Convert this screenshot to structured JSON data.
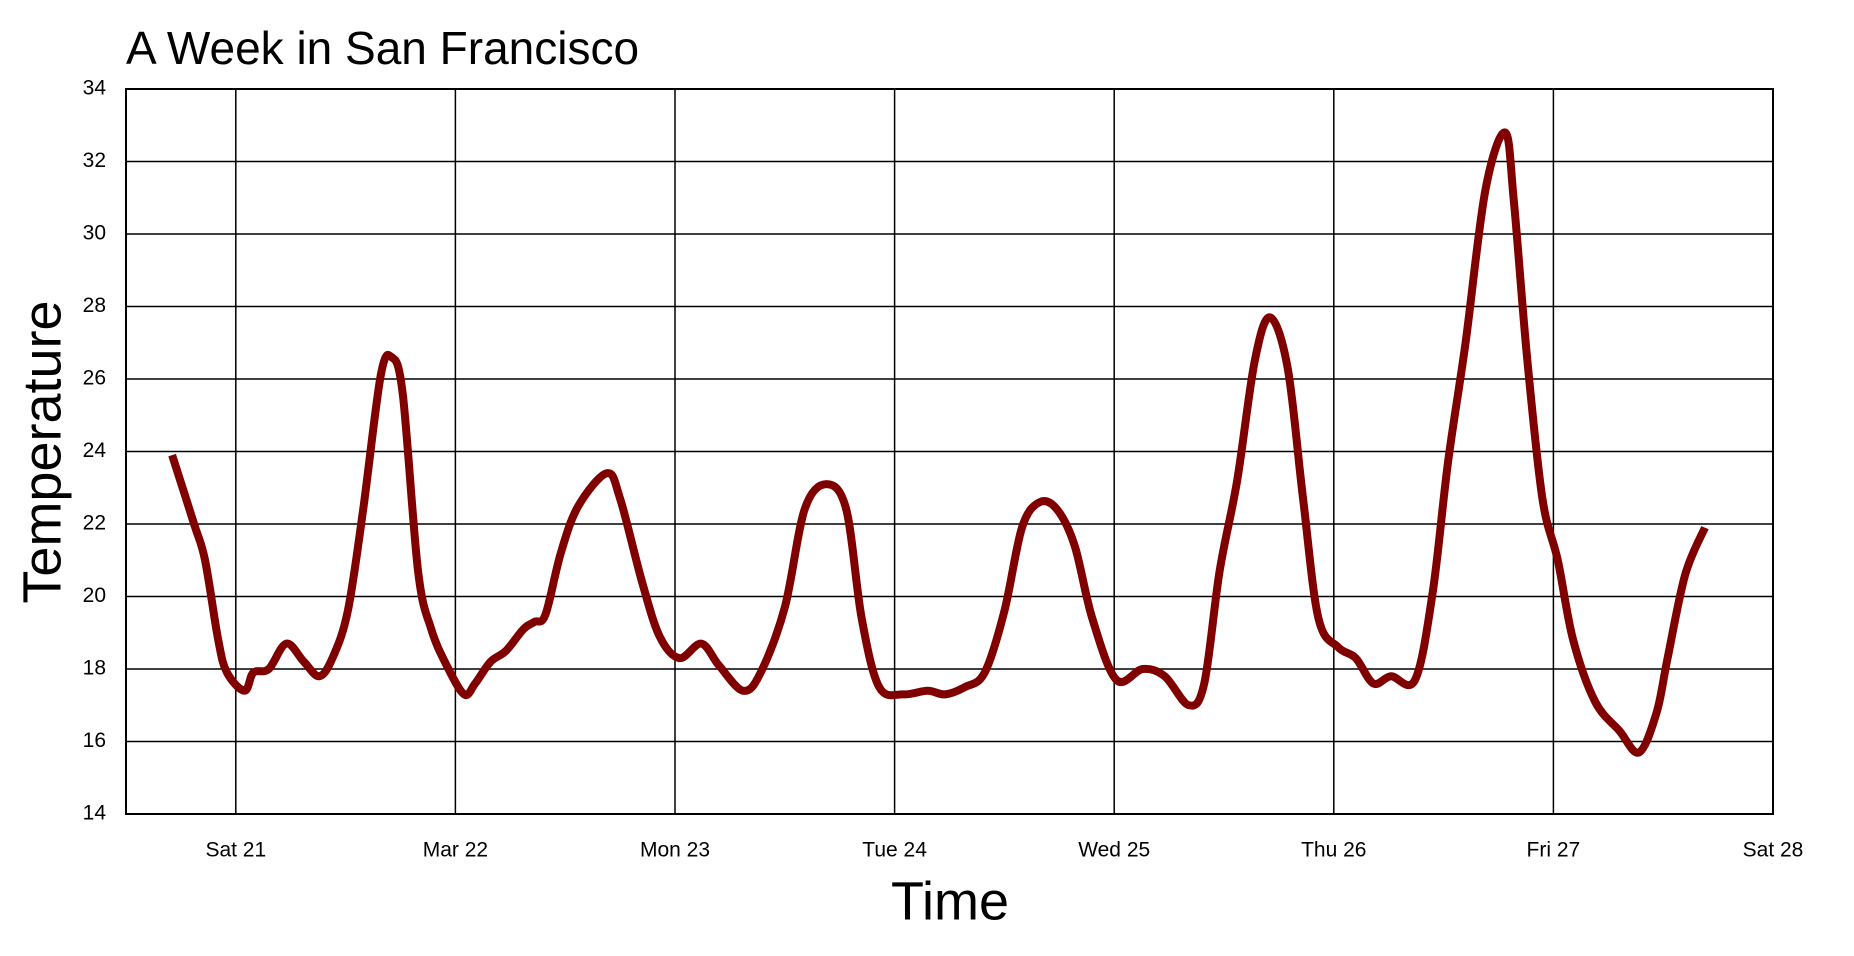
{
  "chart_data": {
    "type": "line",
    "title": "A Week in San Francisco",
    "xlabel": "Time",
    "ylabel": "Temperature",
    "x": [
      20.71,
      20.81,
      20.86,
      20.92,
      20.96,
      21.04,
      21.08,
      21.15,
      21.23,
      21.31,
      21.38,
      21.44,
      21.51,
      21.58,
      21.66,
      21.71,
      21.76,
      21.83,
      21.89,
      21.96,
      22.04,
      22.09,
      22.16,
      22.23,
      22.31,
      22.36,
      22.41,
      22.48,
      22.56,
      22.69,
      22.75,
      22.85,
      22.93,
      23.02,
      23.12,
      23.2,
      23.31,
      23.39,
      23.5,
      23.59,
      23.69,
      23.78,
      23.85,
      23.93,
      24.04,
      24.15,
      24.23,
      24.32,
      24.41,
      24.5,
      24.58,
      24.66,
      24.74,
      24.82,
      24.9,
      25.01,
      25.13,
      25.23,
      25.34,
      25.41,
      25.48,
      25.56,
      25.64,
      25.71,
      25.79,
      25.86,
      25.93,
      26.02,
      26.1,
      26.18,
      26.26,
      26.37,
      26.45,
      26.52,
      26.6,
      26.69,
      26.78,
      26.82,
      26.88,
      26.95,
      27.02,
      27.09,
      27.19,
      27.3,
      27.39,
      27.47,
      27.52,
      27.6,
      27.69
    ],
    "series": [
      {
        "name": "Temperature",
        "color": "#800000",
        "values": [
          23.9,
          22.0,
          21.0,
          18.8,
          17.9,
          17.4,
          17.9,
          18.0,
          18.7,
          18.2,
          17.8,
          18.3,
          19.6,
          22.4,
          26.1,
          26.6,
          25.6,
          20.7,
          19.1,
          18.1,
          17.3,
          17.6,
          18.2,
          18.5,
          19.1,
          19.3,
          19.5,
          21.2,
          22.5,
          23.4,
          22.7,
          20.4,
          18.9,
          18.3,
          18.7,
          18.1,
          17.4,
          17.9,
          19.7,
          22.4,
          23.1,
          22.4,
          19.4,
          17.5,
          17.3,
          17.4,
          17.3,
          17.5,
          17.9,
          19.6,
          21.9,
          22.6,
          22.4,
          21.4,
          19.4,
          17.7,
          18.0,
          17.8,
          17.0,
          17.6,
          20.7,
          23.2,
          26.5,
          27.7,
          26.3,
          22.7,
          19.4,
          18.6,
          18.3,
          17.6,
          17.8,
          17.7,
          20.1,
          23.7,
          27.0,
          31.2,
          32.8,
          30.9,
          26.6,
          22.7,
          21.0,
          18.8,
          17.1,
          16.3,
          15.7,
          16.8,
          18.3,
          20.6,
          21.9
        ]
      }
    ],
    "xlim": [
      20.5,
      28
    ],
    "xticks": [
      {
        "value": 21,
        "label": "Sat 21"
      },
      {
        "value": 22,
        "label": "Mar 22"
      },
      {
        "value": 23,
        "label": "Mon 23"
      },
      {
        "value": 24,
        "label": "Tue 24"
      },
      {
        "value": 25,
        "label": "Wed 25"
      },
      {
        "value": 26,
        "label": "Thu 26"
      },
      {
        "value": 27,
        "label": "Fri 27"
      },
      {
        "value": 28,
        "label": "Sat 28"
      }
    ],
    "ylim": [
      14,
      34
    ],
    "yticks": [
      14,
      16,
      18,
      20,
      22,
      24,
      26,
      28,
      30,
      32,
      34
    ],
    "grid": true
  }
}
